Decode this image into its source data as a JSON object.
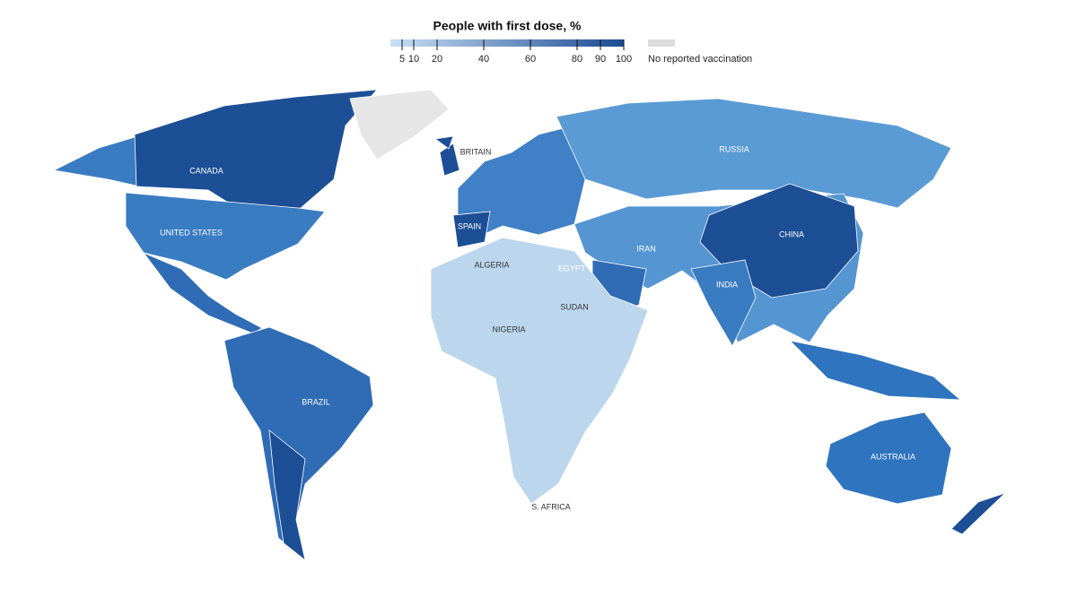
{
  "legend": {
    "title": "People with first dose, %",
    "range": [
      0,
      100
    ],
    "ticks": [
      5,
      10,
      20,
      40,
      60,
      80,
      90,
      100
    ],
    "low_color": "#c9e0f5",
    "high_color": "#1a4a91",
    "no_data_color": "#dcdcdc",
    "no_data_label": "No reported vaccination"
  },
  "labels": [
    "CANADA",
    "UNITED STATES",
    "BRITAIN",
    "SPAIN",
    "RUSSIA",
    "CHINA",
    "IRAN",
    "INDIA",
    "ALGERIA",
    "EGYPT",
    "SUDAN",
    "NIGERIA",
    "BRAZIL",
    "AUSTRALIA",
    "S. AFRICA"
  ]
}
